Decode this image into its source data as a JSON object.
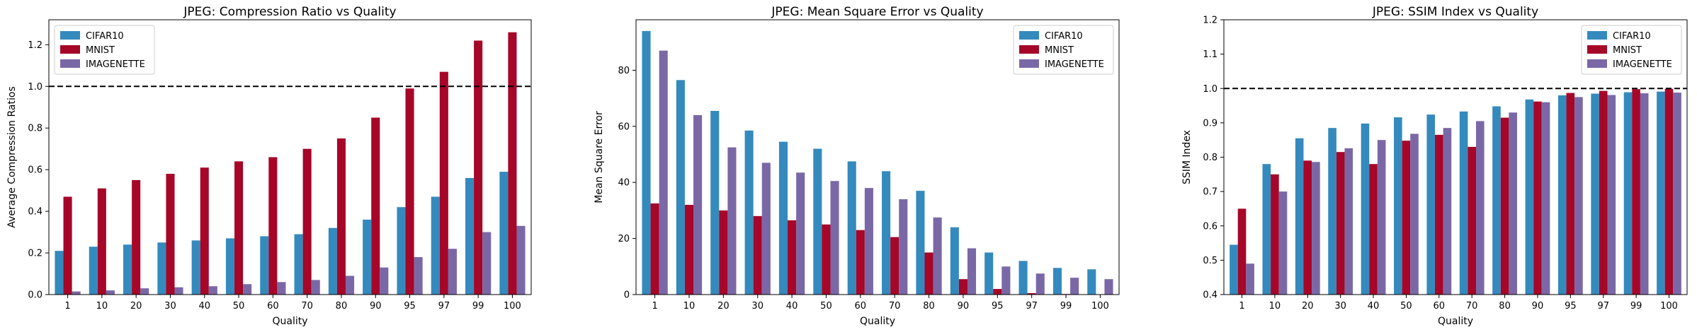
{
  "series_names": [
    "CIFAR10",
    "MNIST",
    "IMAGENETTE"
  ],
  "colors": {
    "CIFAR10": "#348ABD",
    "MNIST": "#A60628",
    "IMAGENETTE": "#7A68A6"
  },
  "chart_data": [
    {
      "type": "bar",
      "title": "JPEG: Compression Ratio vs Quality",
      "xlabel": "Quality",
      "ylabel": "Average Compression Ratios",
      "categories": [
        "1",
        "10",
        "20",
        "30",
        "40",
        "50",
        "60",
        "70",
        "80",
        "90",
        "95",
        "97",
        "99",
        "100"
      ],
      "series": [
        {
          "name": "CIFAR10",
          "values": [
            0.21,
            0.23,
            0.24,
            0.25,
            0.26,
            0.27,
            0.28,
            0.29,
            0.32,
            0.36,
            0.42,
            0.47,
            0.56,
            0.59
          ]
        },
        {
          "name": "MNIST",
          "values": [
            0.47,
            0.51,
            0.55,
            0.58,
            0.61,
            0.64,
            0.66,
            0.7,
            0.75,
            0.85,
            0.99,
            1.07,
            1.22,
            1.26
          ]
        },
        {
          "name": "IMAGENETTE",
          "values": [
            0.015,
            0.02,
            0.03,
            0.035,
            0.04,
            0.05,
            0.06,
            0.07,
            0.09,
            0.13,
            0.18,
            0.22,
            0.3,
            0.33
          ]
        }
      ],
      "ylim": [
        0,
        1.32
      ],
      "yticks": [
        "0.0",
        "0.2",
        "0.4",
        "0.6",
        "0.8",
        "1.0",
        "1.2"
      ],
      "reference_line": 1.0,
      "grid": false,
      "legend": "top-left"
    },
    {
      "type": "bar",
      "title": "JPEG: Mean Square Error vs Quality",
      "xlabel": "Quality",
      "ylabel": "Mean Square Error",
      "categories": [
        "1",
        "10",
        "20",
        "30",
        "40",
        "50",
        "60",
        "70",
        "80",
        "90",
        "95",
        "97",
        "99",
        "100"
      ],
      "series": [
        {
          "name": "CIFAR10",
          "values": [
            94,
            76.5,
            65.5,
            58.5,
            54.5,
            52,
            47.5,
            44,
            37,
            24,
            15,
            12,
            9.5,
            9
          ]
        },
        {
          "name": "MNIST",
          "values": [
            32.5,
            32,
            30,
            28,
            26.5,
            25,
            23,
            20.5,
            15,
            5.5,
            2,
            0.5,
            0.2,
            0.1
          ]
        },
        {
          "name": "IMAGENETTE",
          "values": [
            87,
            64,
            52.5,
            47,
            43.5,
            40.5,
            38,
            34,
            27.5,
            16.5,
            10,
            7.5,
            6,
            5.5
          ]
        }
      ],
      "ylim": [
        0,
        98
      ],
      "yticks": [
        "0",
        "20",
        "40",
        "60",
        "80"
      ],
      "grid": false,
      "legend": "top-right"
    },
    {
      "type": "bar",
      "title": "JPEG: SSIM Index vs Quality",
      "xlabel": "Quality",
      "ylabel": "SSIM Index",
      "categories": [
        "1",
        "10",
        "20",
        "30",
        "40",
        "50",
        "60",
        "70",
        "80",
        "90",
        "95",
        "97",
        "99",
        "100"
      ],
      "series": [
        {
          "name": "CIFAR10",
          "values": [
            0.545,
            0.78,
            0.855,
            0.885,
            0.898,
            0.916,
            0.924,
            0.933,
            0.948,
            0.968,
            0.98,
            0.985,
            0.989,
            0.991
          ]
        },
        {
          "name": "MNIST",
          "values": [
            0.65,
            0.75,
            0.79,
            0.815,
            0.78,
            0.848,
            0.865,
            0.83,
            0.915,
            0.962,
            0.987,
            0.993,
            0.998,
            0.999
          ]
        },
        {
          "name": "IMAGENETTE",
          "values": [
            0.49,
            0.7,
            0.786,
            0.826,
            0.85,
            0.868,
            0.885,
            0.905,
            0.93,
            0.96,
            0.975,
            0.981,
            0.986,
            0.988
          ]
        }
      ],
      "ylim": [
        0.4,
        1.2
      ],
      "yticks": [
        "0.4",
        "0.5",
        "0.6",
        "0.7",
        "0.8",
        "0.9",
        "1.0",
        "1.1",
        "1.2"
      ],
      "reference_line": 1.0,
      "grid": false,
      "legend": "top-right"
    }
  ]
}
